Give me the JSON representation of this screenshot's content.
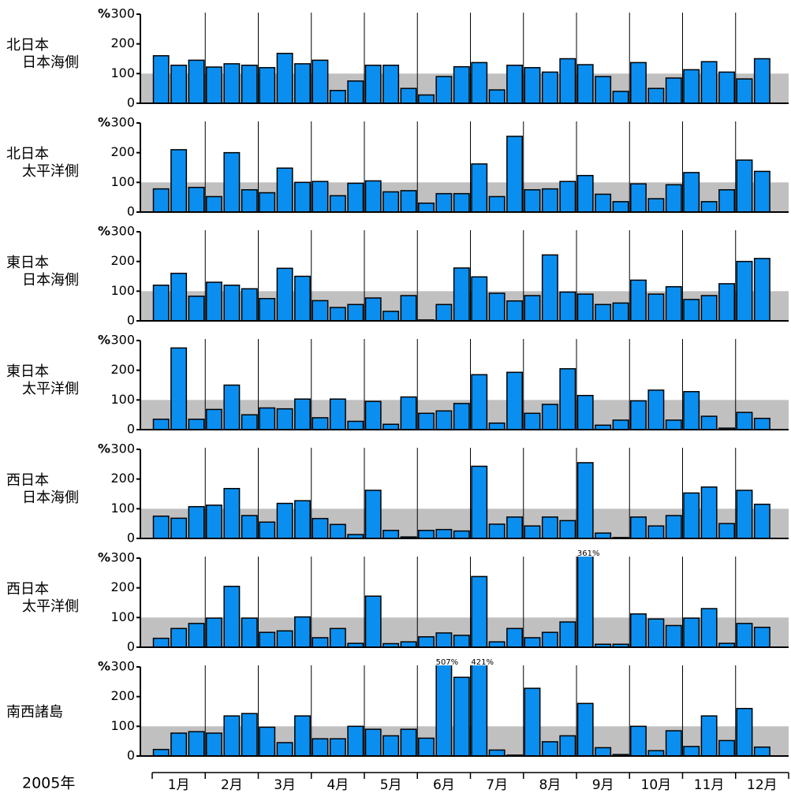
{
  "chart_data": {
    "type": "bar",
    "unit": "%",
    "year": "2005年",
    "months": [
      "1月",
      "2月",
      "3月",
      "4月",
      "5月",
      "6月",
      "7月",
      "8月",
      "9月",
      "10月",
      "11月",
      "12月"
    ],
    "ylim": [
      0,
      300
    ],
    "yticks": [
      0,
      100,
      200,
      300
    ],
    "band": [
      0,
      100
    ],
    "color": "#0a8ff0",
    "band_color": "#c0c0c0",
    "panels": [
      {
        "name": [
          "北日本",
          "日本海側"
        ],
        "values": [
          160,
          128,
          145,
          122,
          133,
          128,
          120,
          168,
          133,
          145,
          43,
          75,
          128,
          128,
          50,
          28,
          90,
          123,
          137,
          45,
          128,
          120,
          105,
          150,
          130,
          90,
          40,
          137,
          50,
          85,
          113,
          140,
          105,
          82,
          150
        ]
      },
      {
        "name": [
          "北日本",
          "太平洋側"
        ],
        "values": [
          78,
          210,
          83,
          52,
          200,
          75,
          65,
          148,
          100,
          103,
          55,
          97,
          105,
          68,
          72,
          30,
          62,
          62,
          162,
          52,
          255,
          75,
          78,
          103,
          123,
          60,
          35,
          95,
          45,
          92,
          133,
          35,
          75,
          175,
          137
        ]
      },
      {
        "name": [
          "東日本",
          "日本海側"
        ],
        "values": [
          120,
          160,
          83,
          130,
          120,
          108,
          75,
          177,
          150,
          68,
          45,
          55,
          77,
          32,
          85,
          3,
          55,
          178,
          148,
          93,
          67,
          85,
          222,
          97,
          90,
          55,
          60,
          137,
          90,
          115,
          72,
          85,
          125,
          200,
          210
        ]
      },
      {
        "name": [
          "東日本",
          "太平洋側"
        ],
        "values": [
          35,
          275,
          35,
          68,
          150,
          50,
          73,
          70,
          103,
          40,
          103,
          28,
          95,
          18,
          110,
          55,
          63,
          88,
          185,
          22,
          193,
          55,
          85,
          205,
          115,
          15,
          32,
          97,
          133,
          32,
          128,
          45,
          5,
          58,
          38
        ]
      },
      {
        "name": [
          "西日本",
          "日本海側"
        ],
        "values": [
          75,
          68,
          107,
          112,
          168,
          77,
          55,
          118,
          127,
          67,
          47,
          13,
          162,
          27,
          5,
          27,
          30,
          25,
          243,
          48,
          72,
          42,
          72,
          60,
          255,
          18,
          3,
          72,
          42,
          77,
          153,
          173,
          50,
          162,
          115
        ]
      },
      {
        "name": [
          "西日本",
          "太平洋側"
        ],
        "values": [
          30,
          63,
          80,
          98,
          205,
          98,
          50,
          55,
          102,
          32,
          63,
          13,
          172,
          12,
          18,
          35,
          48,
          40,
          238,
          18,
          63,
          32,
          50,
          85,
          361,
          10,
          10,
          112,
          95,
          73,
          98,
          130,
          13,
          80,
          67
        ],
        "value_labels": [
          null,
          null,
          null,
          null,
          null,
          null,
          null,
          null,
          null,
          null,
          null,
          null,
          null,
          null,
          null,
          null,
          null,
          null,
          null,
          null,
          null,
          null,
          null,
          null,
          "361%",
          null,
          null,
          null,
          null,
          null,
          null,
          null,
          null,
          null,
          null
        ]
      },
      {
        "name": [
          "南西諸島"
        ],
        "values": [
          22,
          77,
          82,
          77,
          135,
          143,
          97,
          45,
          135,
          58,
          58,
          100,
          90,
          68,
          90,
          60,
          507,
          265,
          421,
          20,
          3,
          228,
          48,
          68,
          177,
          28,
          5,
          100,
          18,
          85,
          32,
          135,
          52,
          160,
          30
        ],
        "value_labels": [
          null,
          null,
          null,
          null,
          null,
          null,
          null,
          null,
          null,
          null,
          null,
          null,
          null,
          null,
          null,
          null,
          "507%",
          null,
          "421%",
          null,
          null,
          null,
          null,
          null,
          null,
          null,
          null,
          null,
          null,
          null,
          null,
          null,
          null,
          null,
          null
        ]
      }
    ]
  }
}
